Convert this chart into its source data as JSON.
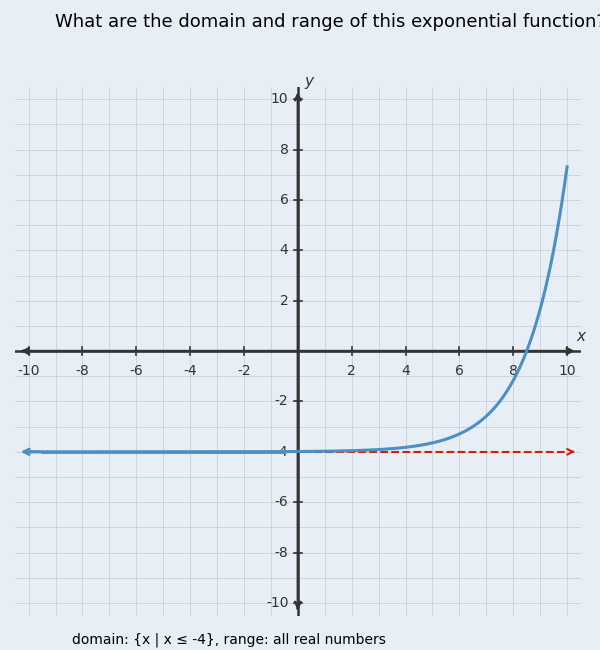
{
  "title": "What are the domain and range of this exponential function?",
  "subtitle": "domain: {x | x ≤ -4}, range: all real numbers",
  "xlim": [
    -10,
    10
  ],
  "ylim": [
    -10,
    10
  ],
  "xticks": [
    -10,
    -8,
    -6,
    -4,
    -2,
    0,
    2,
    4,
    6,
    8,
    10
  ],
  "yticks": [
    -10,
    -8,
    -6,
    -4,
    -2,
    0,
    2,
    4,
    6,
    8,
    10
  ],
  "xlabel": "x",
  "ylabel": "y",
  "curve_color": "#4a90c4",
  "asymptote_y": -4,
  "asymptote_color": "#cc2200",
  "background_color": "#f0f4f8",
  "plot_bg_color": "#e8eef5",
  "grid_color": "#c8d0dc",
  "func_base": 2,
  "func_scale": 0.7,
  "func_shift_x": 8,
  "func_shift_y": -4,
  "title_fontsize": 13,
  "axis_label_fontsize": 11,
  "tick_fontsize": 10
}
